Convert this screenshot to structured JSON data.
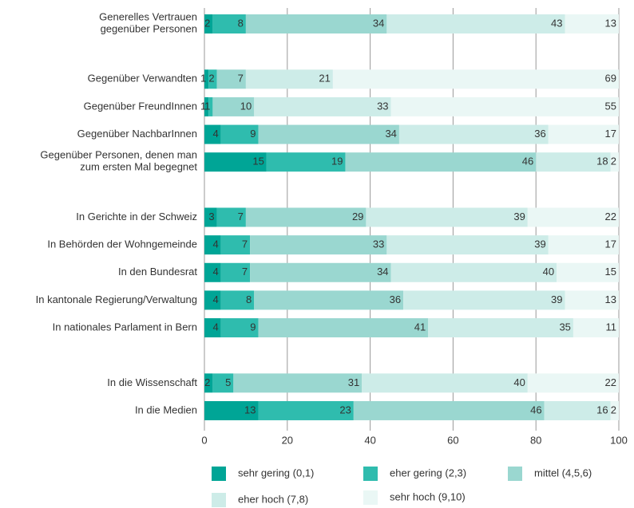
{
  "chart_data": {
    "type": "stacked-bar-horizontal",
    "categories": [
      "Generelles Vertrauen\ngegenüber Personen",
      null,
      "Gegenüber Verwandten",
      "Gegenüber FreundInnen",
      "Gegenüber NachbarInnen",
      "Gegenüber Personen, denen man\nzum ersten Mal begegnet",
      null,
      "In Gerichte in der Schweiz",
      "In Behörden der Wohngemeinde",
      "In den Bundesrat",
      "In kantonale Regierung/Verwaltung",
      "In nationales Parlament in Bern",
      null,
      "In die Wissenschaft",
      "In die Medien"
    ],
    "series": [
      {
        "name": "sehr gering (0,1)",
        "color": "#00a596",
        "values": [
          2,
          null,
          1,
          1,
          4,
          15,
          null,
          3,
          4,
          4,
          4,
          4,
          null,
          2,
          13
        ]
      },
      {
        "name": "eher gering (2,3)",
        "color": "#2fbcae",
        "values": [
          8,
          null,
          2,
          1,
          9,
          19,
          null,
          7,
          7,
          7,
          8,
          9,
          null,
          5,
          23
        ]
      },
      {
        "name": "mittel (4,5,6)",
        "color": "#9ad7d0",
        "values": [
          34,
          null,
          7,
          10,
          34,
          46,
          null,
          29,
          33,
          34,
          36,
          41,
          null,
          31,
          46
        ]
      },
      {
        "name": "eher hoch (7,8)",
        "color": "#cdece8",
        "values": [
          43,
          null,
          21,
          33,
          36,
          18,
          null,
          39,
          39,
          40,
          39,
          35,
          null,
          40,
          16
        ]
      },
      {
        "name": "sehr hoch (9,10)",
        "color": "#eaf7f5",
        "values": [
          13,
          null,
          69,
          55,
          17,
          2,
          null,
          22,
          17,
          15,
          13,
          11,
          null,
          22,
          2
        ]
      }
    ],
    "xlim": [
      0,
      100
    ],
    "xticks": [
      0,
      20,
      40,
      60,
      80,
      100
    ],
    "grid": true
  }
}
